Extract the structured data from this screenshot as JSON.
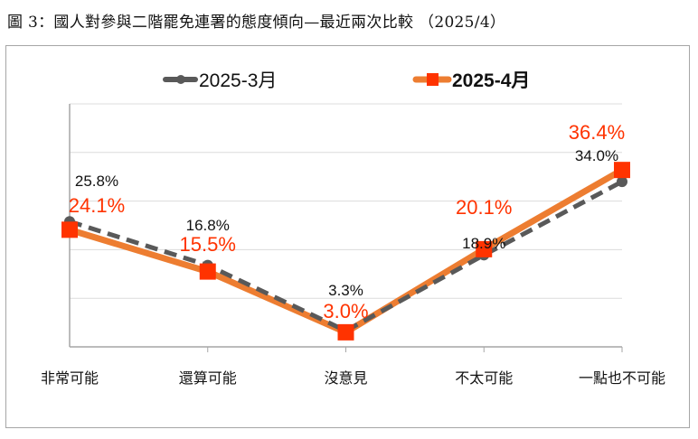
{
  "title": "圖 3：國人對參與二階罷免連署的態度傾向—最近兩次比較 （2025/4）",
  "chart_data": {
    "type": "line",
    "title": "圖 3：國人對參與二階罷免連署的態度傾向—最近兩次比較 （2025/4）",
    "categories": [
      "非常可能",
      "還算可能",
      "沒意見",
      "不太可能",
      "一點也不可能"
    ],
    "ylim": [
      0,
      50
    ],
    "grid": true,
    "legend": "top",
    "series": [
      {
        "name": "2025-3月",
        "values": [
          25.8,
          16.8,
          3.3,
          18.9,
          34.0
        ],
        "labels": [
          "25.8%",
          "16.8%",
          "3.3%",
          "18.9%",
          "34.0%"
        ],
        "color": "#595959",
        "line_style": "dashed",
        "marker": "circle"
      },
      {
        "name": "2025-4月",
        "values": [
          24.1,
          15.5,
          3.0,
          20.1,
          36.4
        ],
        "labels": [
          "24.1%",
          "15.5%",
          "3.0%",
          "20.1%",
          "36.4%"
        ],
        "color": "#ed7d31",
        "marker_color": "#ff3300",
        "line_style": "solid",
        "marker": "square"
      }
    ]
  }
}
